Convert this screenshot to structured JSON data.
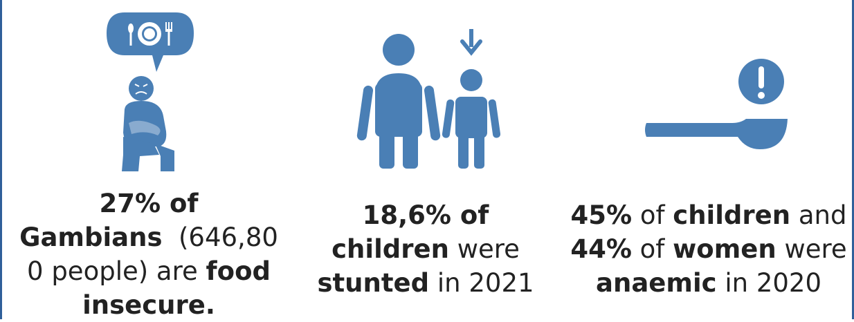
{
  "colors": {
    "icon": "#4a7fb5",
    "border": "#2f5f9a",
    "text": "#222222"
  },
  "icons": {
    "left": "hungry-person-icon",
    "middle": "stunted-children-icon",
    "right": "spoon-alert-icon"
  },
  "stat1": {
    "p1": "27% of",
    "p2": "Gambians",
    "p3": "(646,80",
    "p4": "0 people) are",
    "p5": "food",
    "p6": "insecure."
  },
  "stat2": {
    "p1": "18,6% of",
    "p2": "children",
    "p3": "were",
    "p4": "stunted",
    "p5": "in 2021"
  },
  "stat3": {
    "p1": "45%",
    "p2": "of",
    "p3": "children",
    "p4": "and",
    "p5": "44%",
    "p6": "of",
    "p7": "women",
    "p8": "were",
    "p9": "anaemic",
    "p10": "in 2020"
  }
}
